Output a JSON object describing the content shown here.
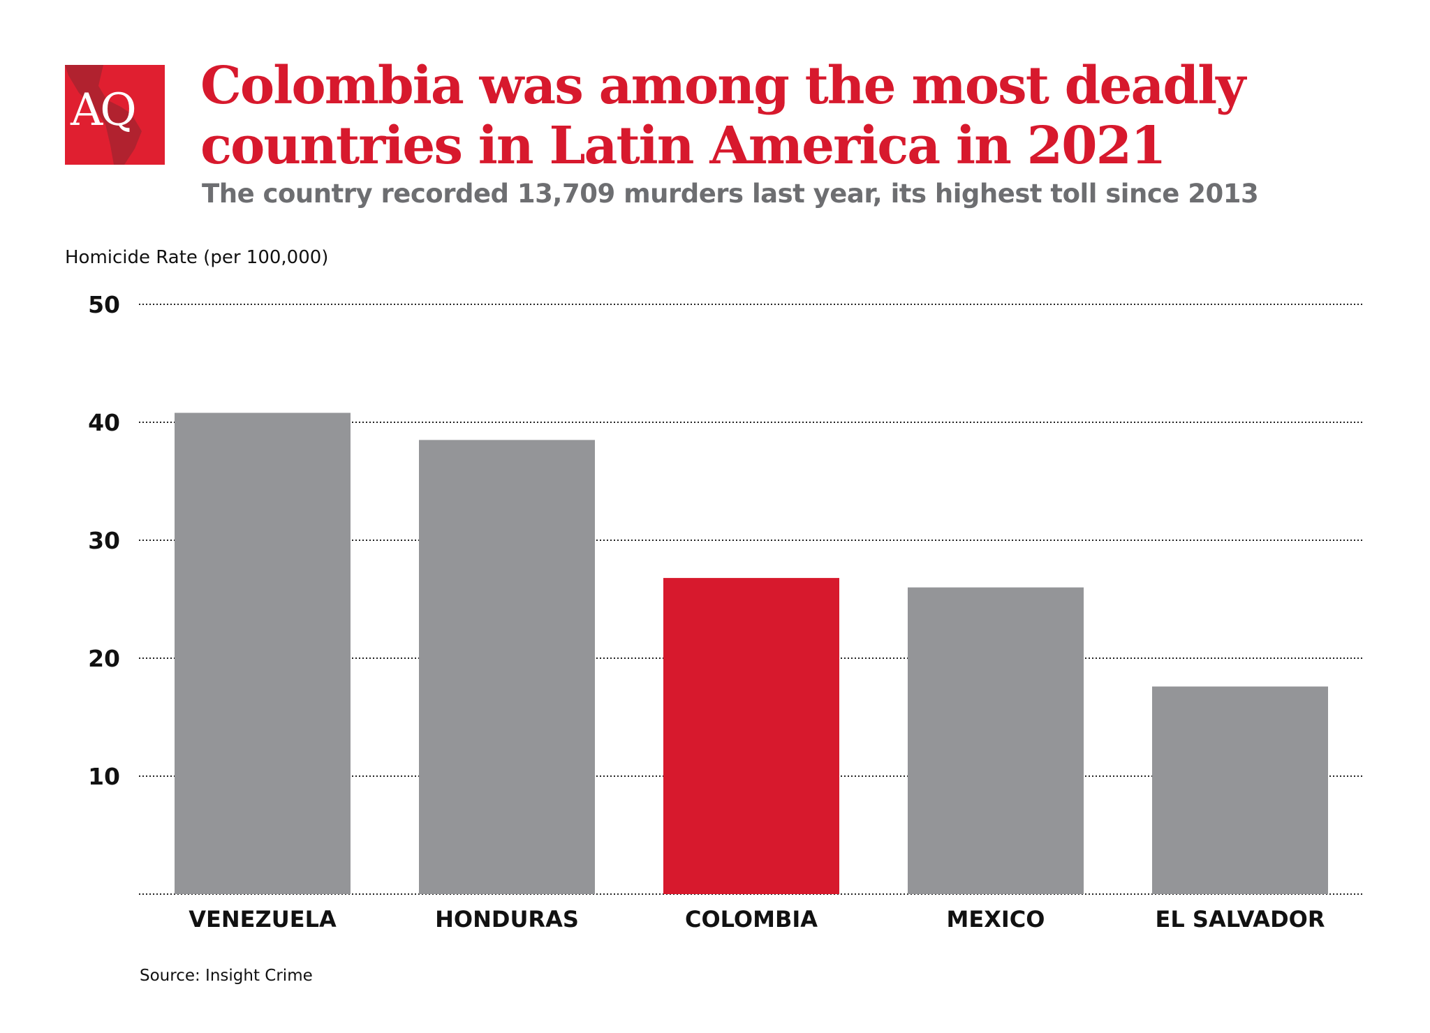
{
  "logo": {
    "text": "AQ",
    "color": "#e01f30"
  },
  "title": "Colombia was among the most deadly countries in Latin America in 2021",
  "subtitle": "The country recorded 13,709 murders last year, its highest toll since 2013",
  "source": "Source: Insight Crime",
  "chart_data": {
    "type": "bar",
    "title": "Colombia was among the most deadly countries in Latin America in 2021",
    "subtitle": "The country recorded 13,709 murders last year, its highest toll since 2013",
    "xlabel": "",
    "ylabel": "Homicide Rate (per 100,000)",
    "categories": [
      "VENEZUELA",
      "HONDURAS",
      "COLOMBIA",
      "MEXICO",
      "EL SALVADOR"
    ],
    "values": [
      40.8,
      38.5,
      26.8,
      26.0,
      17.6
    ],
    "ylim": [
      0,
      50
    ],
    "yticks": [
      10,
      20,
      30,
      40,
      50
    ],
    "ytick_labels": [
      "10",
      "20",
      "30",
      "40",
      "50"
    ],
    "grid": true,
    "grid_style": "dotted",
    "colors": {
      "default": "#949598",
      "highlight": "#d7192d"
    },
    "highlight": "COLOMBIA"
  }
}
